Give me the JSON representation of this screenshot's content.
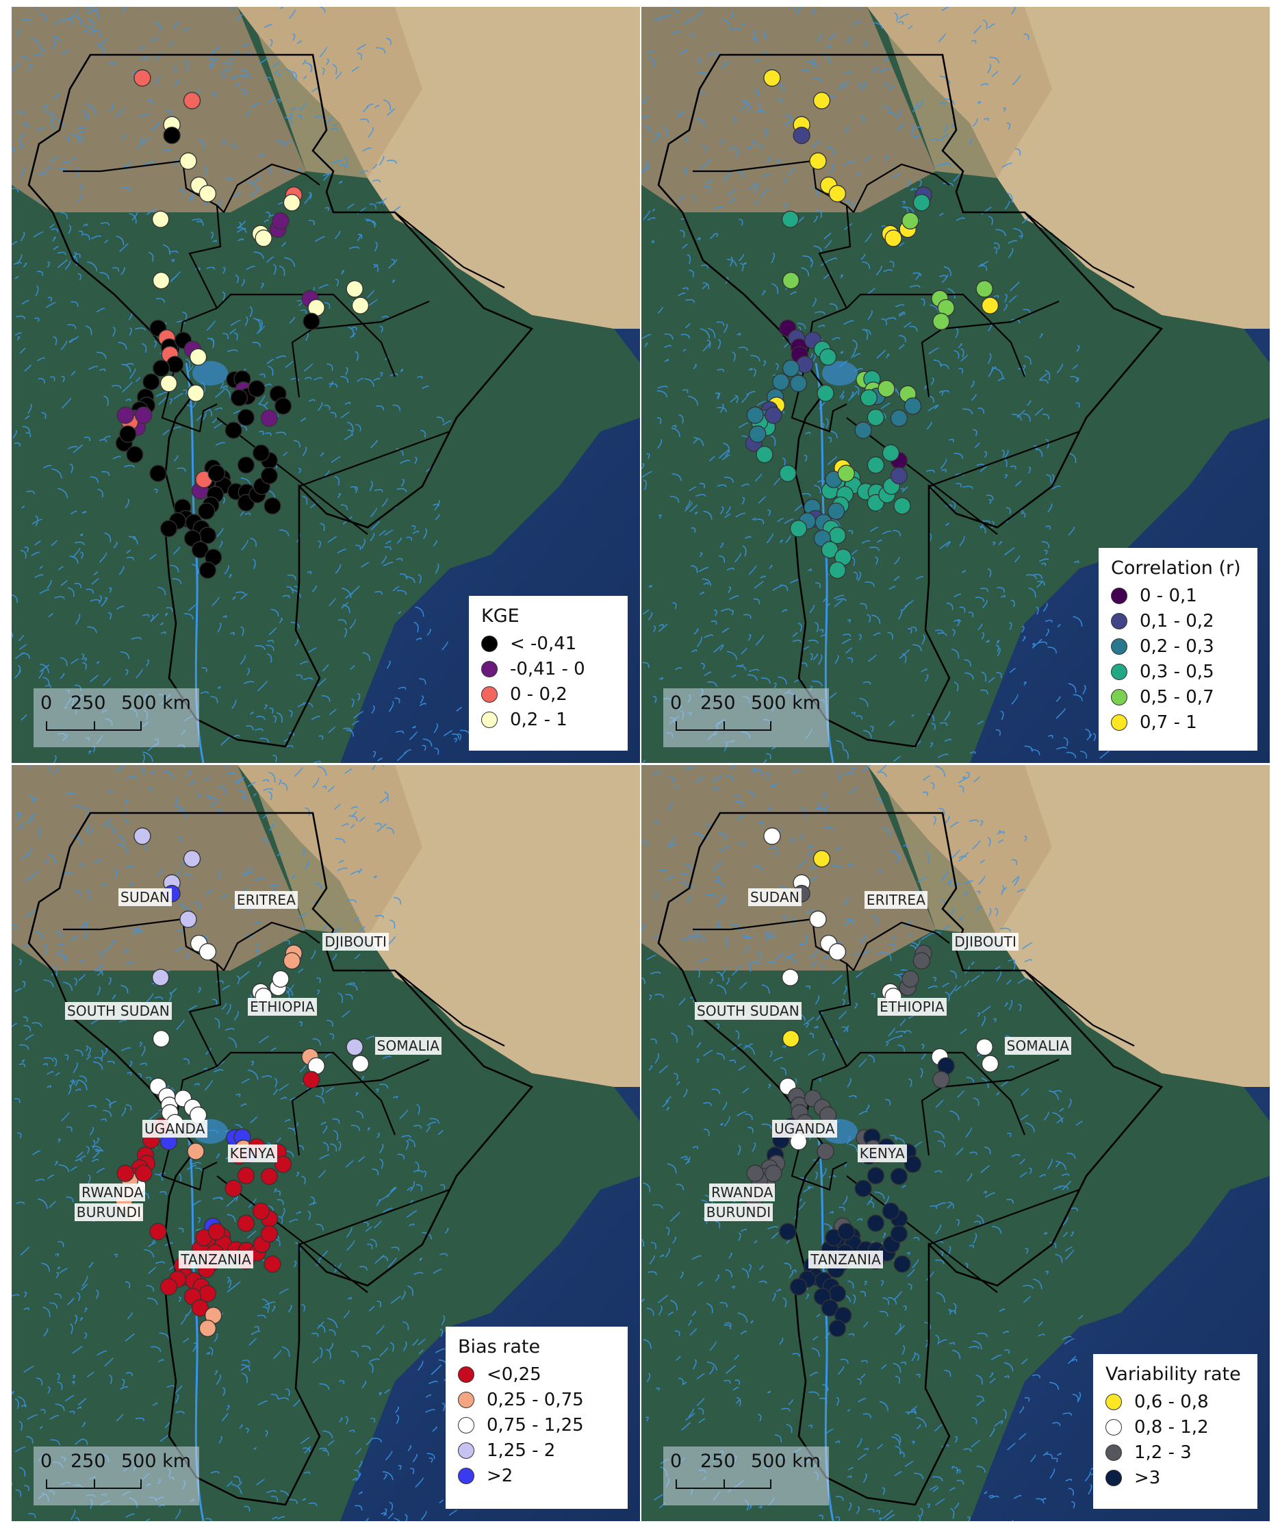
{
  "scale_bar": {
    "zero": "0",
    "mid": "250",
    "end": "500 km"
  },
  "countries": [
    "SUDAN",
    "ERITREA",
    "DJIBOUTI",
    "SOUTH SUDAN",
    "ETHIOPIA",
    "SOMALIA",
    "UGANDA",
    "KENYA",
    "RWANDA",
    "BURUNDI",
    "TANZANIA"
  ],
  "panels": [
    {
      "legend_title": "KGE",
      "classes": [
        {
          "label": "< -0,41",
          "color": "#000000"
        },
        {
          "label": "-0,41 - 0",
          "color": "#6a1a7a"
        },
        {
          "label": "0 - 0,2",
          "color": "#f2665e"
        },
        {
          "label": "0,2 - 1",
          "color": "#fdfdc6"
        }
      ],
      "show_country_labels": false
    },
    {
      "legend_title": "Correlation (r)",
      "classes": [
        {
          "label": "0 - 0,1",
          "color": "#440154"
        },
        {
          "label": "0,1 - 0,2",
          "color": "#414487"
        },
        {
          "label": "0,2 - 0,3",
          "color": "#2a788e"
        },
        {
          "label": "0,3 - 0,5",
          "color": "#22a884"
        },
        {
          "label": "0,5 - 0,7",
          "color": "#7ad151"
        },
        {
          "label": "0,7 - 1",
          "color": "#fde725"
        }
      ],
      "show_country_labels": false
    },
    {
      "legend_title": "Bias rate",
      "classes": [
        {
          "label": "<0,25",
          "color": "#c80a1e"
        },
        {
          "label": "0,25 - 0,75",
          "color": "#f4a582"
        },
        {
          "label": "0,75 - 1,25",
          "color": "#ffffff"
        },
        {
          "label": "1,25 - 2",
          "color": "#c6c3f2"
        },
        {
          "label": ">2",
          "color": "#3a3af0"
        }
      ],
      "show_country_labels": true
    },
    {
      "legend_title": "Variability rate",
      "classes": [
        {
          "label": "0,6 - 0,8",
          "color": "#fde725"
        },
        {
          "label": "0,8 - 1,2",
          "color": "#ffffff"
        },
        {
          "label": "1,2 - 3",
          "color": "#56565e"
        },
        {
          "label": ">3",
          "color": "#0b1f44"
        }
      ],
      "show_country_labels": true
    }
  ]
}
